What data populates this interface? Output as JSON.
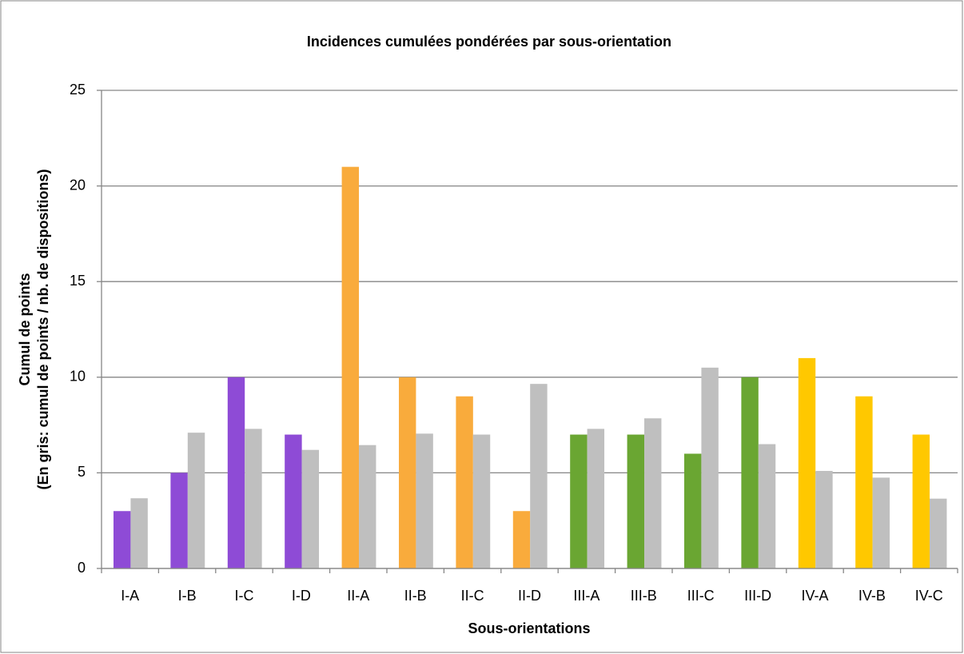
{
  "chart_data": {
    "type": "bar",
    "title": "Incidences cumulées pondérées par sous-orientation",
    "xlabel": "Sous-orientations",
    "ylabel": [
      "Cumul de points",
      "(En gris: cumul de points / nb. de dispositions)"
    ],
    "categories": [
      "I-A",
      "I-B",
      "I-C",
      "I-D",
      "II-A",
      "II-B",
      "II-C",
      "II-D",
      "III-A",
      "III-B",
      "III-C",
      "III-D",
      "IV-A",
      "IV-B",
      "IV-C"
    ],
    "series": [
      {
        "colors": [
          "#8e4bd6",
          "#8e4bd6",
          "#8e4bd6",
          "#8e4bd6",
          "#f9ab3c",
          "#f9ab3c",
          "#f9ab3c",
          "#f9ab3c",
          "#6aa632",
          "#6aa632",
          "#6aa632",
          "#6aa632",
          "#ffc800",
          "#ffc800",
          "#ffc800"
        ],
        "values": [
          3,
          5,
          10,
          7,
          21,
          10,
          9,
          3,
          7,
          7,
          6,
          10,
          11,
          9,
          7
        ]
      },
      {
        "color": "#bfbfbf",
        "values": [
          3.67,
          7.1,
          7.3,
          6.2,
          6.45,
          7.05,
          7.0,
          9.65,
          7.3,
          7.85,
          10.5,
          6.5,
          5.1,
          4.75,
          3.65
        ]
      }
    ],
    "ylim": [
      0,
      25
    ],
    "yticks": [
      0,
      5,
      10,
      15,
      20,
      25
    ],
    "grid": true
  }
}
